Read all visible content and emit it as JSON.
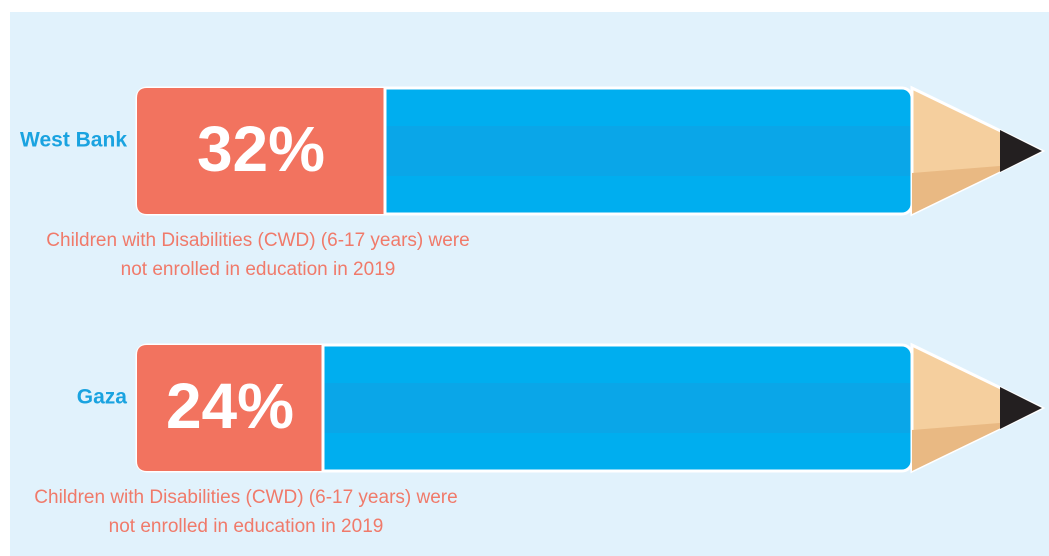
{
  "chart_data": {
    "type": "bar",
    "orientation": "horizontal",
    "categories": [
      "West Bank",
      "Gaza"
    ],
    "values": [
      32,
      24
    ],
    "value_labels": [
      "32%",
      "24%"
    ],
    "xlim": [
      0,
      100
    ],
    "color": "#f2735f",
    "annotations": [
      [
        "Children with Disabilities (CWD) (6-17 years) were",
        "not enrolled in education in 2019"
      ],
      [
        "Children with Disabilities (CWD) (6-17 years) were",
        "not enrolled in education in 2019"
      ]
    ]
  }
}
